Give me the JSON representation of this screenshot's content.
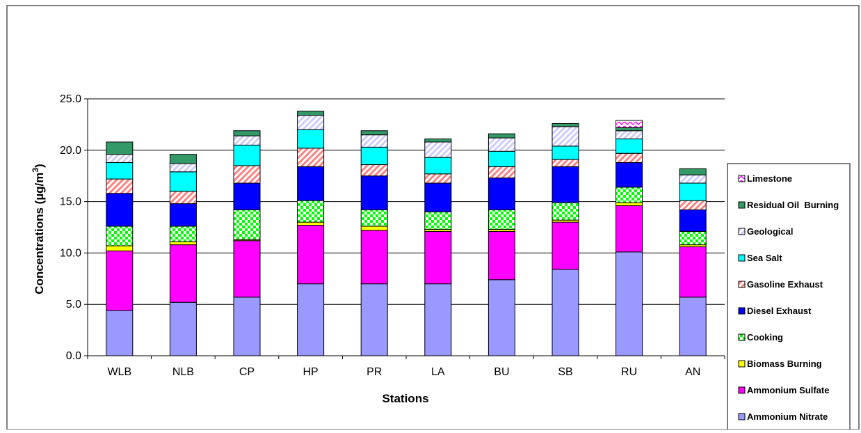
{
  "chart_data": {
    "type": "bar",
    "stacked": true,
    "title": "",
    "xlabel": "Stations",
    "ylabel": "Concentrations (µg/m",
    "ylabel_superscript": "3",
    "ylabel_suffix": ")",
    "ylim": [
      0,
      25
    ],
    "yticks": [
      "0.0",
      "5.0",
      "10.0",
      "15.0",
      "20.0",
      "25.0"
    ],
    "grid": true,
    "legend_position": "right",
    "categories": [
      "WLB",
      "NLB",
      "CP",
      "HP",
      "PR",
      "LA",
      "BU",
      "SB",
      "RU",
      "AN"
    ],
    "series": [
      {
        "name": "Ammonium Nitrate",
        "color": "#9999ff",
        "pattern": "solid",
        "values": [
          4.4,
          5.2,
          5.7,
          7.0,
          7.0,
          7.0,
          7.4,
          8.4,
          10.1,
          5.7
        ]
      },
      {
        "name": "Ammonium Sulfate",
        "color": "#ff00ff",
        "pattern": "solid",
        "values": [
          5.8,
          5.6,
          5.5,
          5.7,
          5.2,
          5.1,
          4.7,
          4.6,
          4.5,
          4.9
        ]
      },
      {
        "name": "Biomass Burning",
        "color": "#ffff00",
        "pattern": "solid",
        "values": [
          0.5,
          0.3,
          0.1,
          0.3,
          0.4,
          0.2,
          0.2,
          0.2,
          0.3,
          0.2
        ]
      },
      {
        "name": "Cooking",
        "color": "#00ff00",
        "pattern": "checker",
        "values": [
          1.9,
          1.5,
          2.9,
          2.1,
          1.6,
          1.7,
          1.9,
          1.7,
          1.5,
          1.3
        ]
      },
      {
        "name": "Diesel Exhaust",
        "color": "#0000ff",
        "pattern": "solid",
        "values": [
          3.2,
          2.2,
          2.6,
          3.3,
          3.3,
          2.8,
          3.1,
          3.5,
          2.4,
          2.1
        ]
      },
      {
        "name": "Gasoline Exhaust",
        "color": "#ff8080",
        "pattern": "hatch",
        "values": [
          1.4,
          1.2,
          1.7,
          1.8,
          1.1,
          0.9,
          1.1,
          0.7,
          0.9,
          0.9
        ]
      },
      {
        "name": "Sea Salt",
        "color": "#00ffff",
        "pattern": "solid",
        "values": [
          1.6,
          1.9,
          2.0,
          1.8,
          1.7,
          1.6,
          1.5,
          1.3,
          1.4,
          1.7
        ]
      },
      {
        "name": "Geological",
        "color": "#ccccff",
        "pattern": "hatch",
        "values": [
          0.8,
          0.8,
          0.9,
          1.4,
          1.2,
          1.5,
          1.3,
          1.9,
          0.8,
          0.8
        ]
      },
      {
        "name": "Residual Oil  Burning",
        "color": "#339966",
        "pattern": "solid",
        "values": [
          1.2,
          0.9,
          0.5,
          0.4,
          0.4,
          0.3,
          0.4,
          0.3,
          0.3,
          0.6
        ]
      },
      {
        "name": "Limestone",
        "color": "#ff00ff",
        "pattern": "wave",
        "values": [
          0,
          0,
          0,
          0,
          0,
          0,
          0,
          0,
          0.7,
          0
        ]
      }
    ]
  }
}
